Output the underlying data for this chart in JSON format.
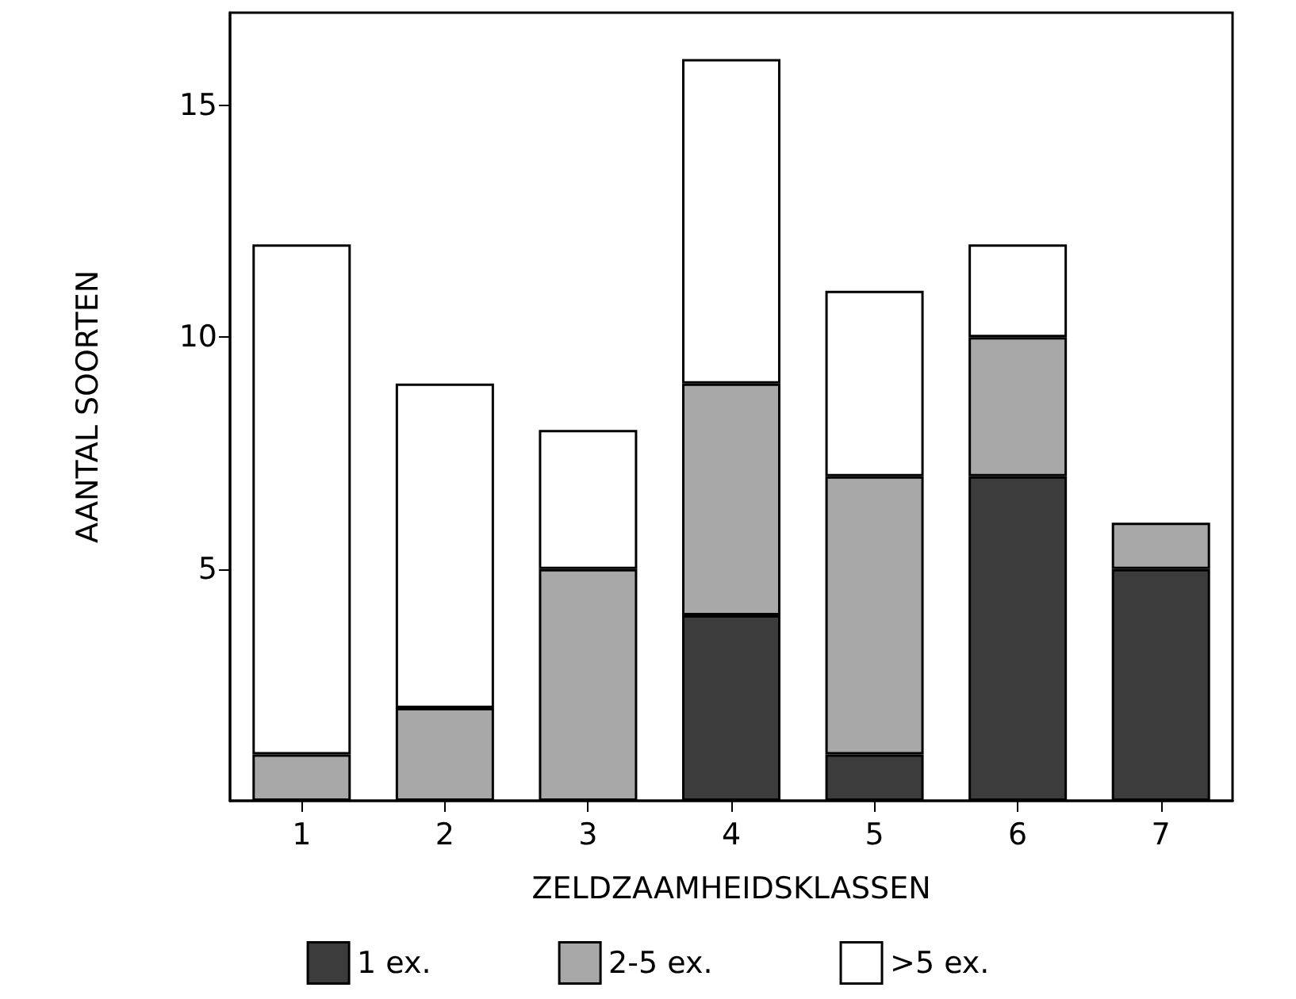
{
  "chart_data": {
    "type": "bar",
    "stacked": true,
    "xlabel": "ZELDZAAMHEIDSKLASSEN",
    "ylabel": "AANTAL SOORTEN",
    "categories": [
      "1",
      "2",
      "3",
      "4",
      "5",
      "6",
      "7"
    ],
    "series": [
      {
        "name": "1 ex.",
        "color": "#3c3c3c",
        "values": [
          0,
          0,
          0,
          4,
          1,
          7,
          5
        ]
      },
      {
        "name": "2-5 ex.",
        "color": "#a8a8a8",
        "values": [
          1,
          2,
          5,
          5,
          6,
          3,
          1
        ]
      },
      {
        "name": ">5 ex.",
        "color": "#ffffff",
        "values": [
          11,
          7,
          3,
          7,
          4,
          2,
          0
        ]
      }
    ],
    "ylim": [
      0,
      17
    ],
    "yticks": [
      5,
      10,
      15
    ],
    "grid": false,
    "legend": "bottom"
  }
}
